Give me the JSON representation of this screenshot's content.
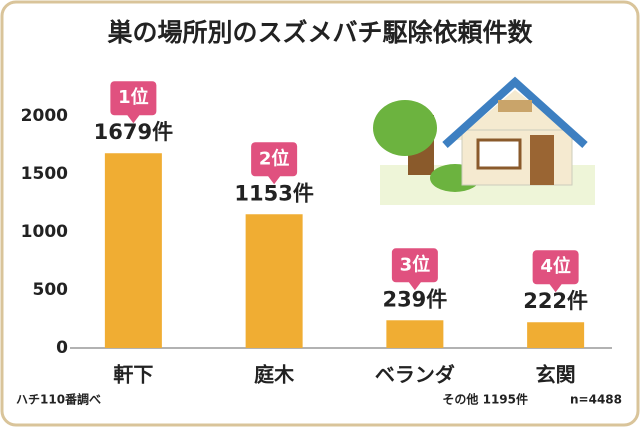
{
  "chart_data": {
    "type": "bar",
    "title": "巣の場所別のスズメバチ駆除依頼件数",
    "categories": [
      "軒下",
      "庭木",
      "ベランダ",
      "玄関"
    ],
    "values": [
      1679,
      1153,
      239,
      222
    ],
    "value_labels": [
      "1679件",
      "1153件",
      "239件",
      "222件"
    ],
    "rank_labels": [
      "1位",
      "2位",
      "3位",
      "4位"
    ],
    "color": "#f0ad33",
    "ylim": [
      0,
      2200
    ],
    "yticks": [
      0,
      500,
      1000,
      1500,
      2000
    ],
    "source": "ハチ110番調べ",
    "other_note": "その他 1195件",
    "sample_note": "n=4488"
  }
}
